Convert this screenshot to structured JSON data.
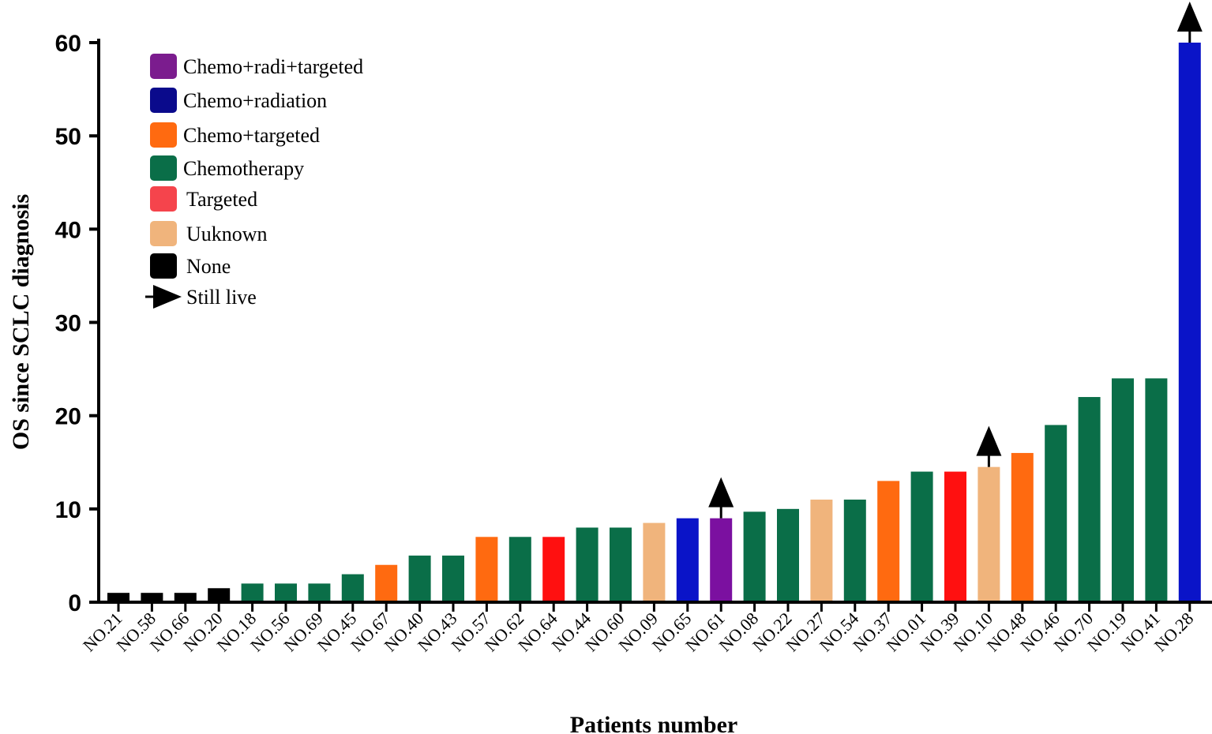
{
  "chart_data": {
    "type": "bar",
    "title": "",
    "xlabel": "Patients number",
    "ylabel": "OS since SCLC diagnosis",
    "ylim": [
      0,
      60
    ],
    "yticks": [
      0,
      10,
      20,
      30,
      40,
      50,
      60
    ],
    "categories": [
      "NO.21",
      "NO.58",
      "NO.66",
      "NO.20",
      "NO.18",
      "NO.56",
      "NO.69",
      "NO.45",
      "NO.67",
      "NO.40",
      "NO.43",
      "NO.57",
      "NO.62",
      "NO.64",
      "NO.44",
      "NO.60",
      "NO.09",
      "NO.65",
      "NO.61",
      "NO.08",
      "NO.22",
      "NO.27",
      "NO.54",
      "NO.37",
      "NO.01",
      "NO.39",
      "NO.10",
      "NO.48",
      "NO.46",
      "NO.70",
      "NO.19",
      "NO.41",
      "NO.28"
    ],
    "values": [
      1,
      1,
      1,
      1.5,
      2,
      2,
      2,
      3,
      4,
      5,
      5,
      7,
      7,
      7,
      8,
      8,
      8.5,
      9,
      9,
      9.7,
      10,
      11,
      11,
      13,
      14,
      14,
      14.5,
      16,
      19,
      22,
      24,
      24,
      60
    ],
    "treatments": [
      "None",
      "None",
      "None",
      "None",
      "Chemotherapy",
      "Chemotherapy",
      "Chemotherapy",
      "Chemotherapy",
      "Chemo+targeted",
      "Chemotherapy",
      "Chemotherapy",
      "Chemo+targeted",
      "Chemotherapy",
      "Targeted",
      "Chemotherapy",
      "Chemotherapy",
      "Uuknown",
      "Chemo+radiation",
      "Chemo+radi+targeted",
      "Chemotherapy",
      "Chemotherapy",
      "Uuknown",
      "Chemotherapy",
      "Chemo+targeted",
      "Chemotherapy",
      "Targeted",
      "Uuknown",
      "Chemo+targeted",
      "Chemotherapy",
      "Chemotherapy",
      "Chemotherapy",
      "Chemotherapy",
      "Chemo+radiation"
    ],
    "still_live": [
      "NO.61",
      "NO.10",
      "NO.28"
    ],
    "legend": [
      {
        "label": "Chemo+radi+targeted",
        "color": "#7B1C8E",
        "bar_color": "#7B10A0"
      },
      {
        "label": "Chemo+radiation",
        "color": "#0A0A8C",
        "bar_color": "#0A14C8"
      },
      {
        "label": "Chemo+targeted",
        "color": "#FF6A10",
        "bar_color": "#FF6A10"
      },
      {
        "label": "Chemotherapy",
        "color": "#0A6E48",
        "bar_color": "#0A6E48"
      },
      {
        "label": "Targeted",
        "color": "#F5444C",
        "bar_color": "#FF1010"
      },
      {
        "label": "Uuknown",
        "color": "#F0B47C",
        "bar_color": "#F0B47C"
      },
      {
        "label": "None",
        "color": "#000000",
        "bar_color": "#000000"
      }
    ],
    "legend_marker_label": "Still live",
    "legend_position": "top-left",
    "grid": false
  }
}
